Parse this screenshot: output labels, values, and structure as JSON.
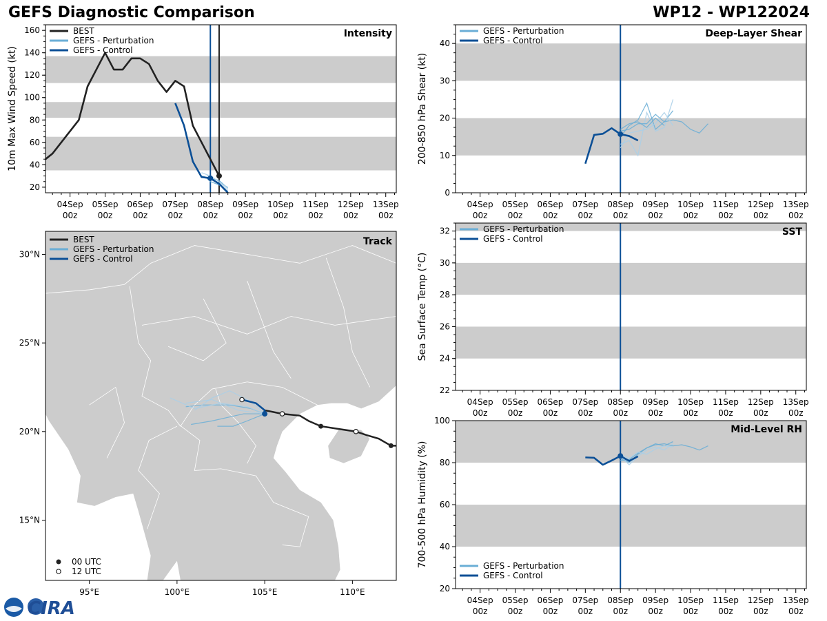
{
  "header": {
    "title_left": "GEFS Diagnostic Comparison",
    "title_right": "WP12 - WP122024"
  },
  "colors": {
    "best": "#222222",
    "perturbation": "#6aaed6",
    "perturbation_light": "#a9cfe8",
    "control": "#0b4f96",
    "band": "#cccccc",
    "land": "#cccccc",
    "border": "#ffffff"
  },
  "logo": {
    "text": "CIRA",
    "icon": "noaa-logo-icon"
  },
  "time_axis": {
    "ticks": [
      1,
      2,
      3,
      4,
      5,
      6,
      7,
      8,
      9
    ],
    "labels": [
      [
        "04Sep",
        "00z"
      ],
      [
        "05Sep",
        "00z"
      ],
      [
        "06Sep",
        "00z"
      ],
      [
        "07Sep",
        "00z"
      ],
      [
        "08Sep",
        "00z"
      ],
      [
        "09Sep",
        "00z"
      ],
      [
        "10Sep",
        "00z"
      ],
      [
        "11Sep",
        "00z"
      ],
      [
        "12Sep",
        "00z"
      ],
      [
        "13Sep",
        "00z"
      ]
    ],
    "tick_days": [
      1,
      2,
      3,
      4,
      5,
      6,
      7,
      8,
      9,
      10
    ],
    "range": [
      0.3,
      10.3
    ],
    "current_time": 5.0
  },
  "chart_data": [
    {
      "id": "intensity",
      "type": "line",
      "title": "Intensity",
      "ylabel": "10m Max Wind Speed (kt)",
      "ylim": [
        15,
        165
      ],
      "yticks": [
        20,
        40,
        60,
        80,
        100,
        120,
        140,
        160
      ],
      "bands": [
        [
          35,
          65
        ],
        [
          82,
          96
        ],
        [
          113,
          137
        ]
      ],
      "best_end_line": 5.25,
      "legend": [
        "BEST",
        "GEFS - Perturbation",
        "GEFS - Control"
      ],
      "series": [
        {
          "name": "BEST",
          "x": [
            0.3,
            0.5,
            0.75,
            1.0,
            1.25,
            1.5,
            1.75,
            2.0,
            2.25,
            2.5,
            2.75,
            3.0,
            3.25,
            3.5,
            3.75,
            4.0,
            4.25,
            4.5,
            4.75,
            5.0,
            5.25
          ],
          "y": [
            45,
            50,
            60,
            70,
            80,
            110,
            125,
            140,
            125,
            125,
            135,
            135,
            130,
            115,
            105,
            115,
            110,
            75,
            60,
            45,
            30
          ],
          "end_marker": true
        },
        {
          "name": "GEFS - Control",
          "x": [
            4.0,
            4.25,
            4.5,
            4.75,
            5.0,
            5.25,
            5.5
          ],
          "y": [
            95,
            75,
            43,
            29,
            28,
            23,
            15
          ],
          "marker_at": [
            5.0,
            28
          ]
        },
        {
          "name": "GEFS - Perturbation",
          "members": [
            {
              "x": [
                4.75,
                5.0,
                5.25,
                5.5
              ],
              "y": [
                30,
                28,
                26,
                19
              ]
            },
            {
              "x": [
                4.75,
                5.0,
                5.25,
                5.5
              ],
              "y": [
                33,
                30,
                25,
                17
              ]
            },
            {
              "x": [
                4.9,
                5.0,
                5.25,
                5.5
              ],
              "y": [
                28,
                25,
                22,
                16
              ]
            },
            {
              "x": [
                4.9,
                5.0,
                5.25,
                5.5
              ],
              "y": [
                31,
                27,
                24,
                20
              ]
            }
          ]
        }
      ]
    },
    {
      "id": "shear",
      "type": "line",
      "title": "Deep-Layer Shear",
      "ylabel": "200-850 hPa Shear (kt)",
      "ylim": [
        0,
        45
      ],
      "yticks": [
        0,
        10,
        20,
        30,
        40
      ],
      "bands": [
        [
          10,
          20
        ],
        [
          30,
          40
        ]
      ],
      "legend": [
        "GEFS - Perturbation",
        "GEFS - Control"
      ],
      "series": [
        {
          "name": "GEFS - Control",
          "x": [
            4.0,
            4.25,
            4.5,
            4.75,
            5.0,
            5.25,
            5.5
          ],
          "y": [
            7.8,
            15.5,
            15.8,
            17.3,
            15.7,
            15.2,
            14.0
          ],
          "marker_at": [
            5.0,
            15.7
          ]
        },
        {
          "name": "GEFS - Perturbation",
          "members": [
            {
              "x": [
                5.0,
                5.25,
                5.5,
                5.75,
                6.0,
                6.25,
                6.5
              ],
              "y": [
                15.0,
                18.0,
                19.5,
                24.0,
                17.0,
                19.0,
                22.0
              ]
            },
            {
              "x": [
                5.0,
                5.25,
                5.5,
                5.75,
                6.0,
                6.25,
                6.5
              ],
              "y": [
                13.0,
                14.0,
                10.0,
                21.5,
                16.5,
                17.5,
                25.0
              ]
            },
            {
              "x": [
                5.0,
                5.25,
                5.5,
                5.75,
                6.0,
                6.25,
                6.5,
                6.75,
                7.0,
                7.25,
                7.5
              ],
              "y": [
                16.5,
                17.0,
                18.5,
                18.5,
                21.0,
                19.0,
                19.5,
                19.0,
                17.0,
                16.0,
                18.5
              ]
            },
            {
              "x": [
                5.0,
                5.25,
                5.5,
                5.75,
                6.0,
                6.25,
                6.5
              ],
              "y": [
                12.0,
                16.0,
                16.5,
                17.0,
                18.5,
                21.5,
                18.0
              ]
            },
            {
              "x": [
                5.0,
                5.25,
                5.5,
                5.75,
                6.0,
                6.25
              ],
              "y": [
                17.0,
                18.5,
                19.0,
                17.5,
                20.0,
                18.0
              ]
            }
          ]
        }
      ]
    },
    {
      "id": "sst",
      "type": "line",
      "title": "SST",
      "ylabel": "Sea Surface Temp (°C)",
      "ylim": [
        22,
        32.5
      ],
      "yticks": [
        22,
        24,
        26,
        28,
        30,
        32
      ],
      "bands": [
        [
          24,
          26
        ],
        [
          28,
          30
        ],
        [
          32,
          32.5
        ]
      ],
      "legend": [
        "GEFS - Perturbation",
        "GEFS - Control"
      ],
      "series": []
    },
    {
      "id": "rh",
      "type": "line",
      "title": "Mid-Level RH",
      "ylabel": "700-500 hPa Humidity (%)",
      "ylim": [
        20,
        100
      ],
      "yticks": [
        20,
        40,
        60,
        80,
        100
      ],
      "bands": [
        [
          40,
          60
        ],
        [
          80,
          100
        ]
      ],
      "legend": [
        "GEFS - Perturbation",
        "GEFS - Control"
      ],
      "series": [
        {
          "name": "GEFS - Control",
          "x": [
            4.0,
            4.25,
            4.5,
            4.75,
            5.0,
            5.25,
            5.5
          ],
          "y": [
            82.5,
            82.3,
            79.0,
            81.0,
            83.2,
            80.8,
            83.0
          ],
          "marker_at": [
            5.0,
            83.2
          ]
        },
        {
          "name": "GEFS - Perturbation",
          "members": [
            {
              "x": [
                5.0,
                5.25,
                5.5,
                5.75,
                6.0,
                6.25,
                6.5
              ],
              "y": [
                82.0,
                80.0,
                84.0,
                87.0,
                89.0,
                88.0,
                90.0
              ]
            },
            {
              "x": [
                5.0,
                5.25,
                5.5,
                5.75,
                6.0,
                6.25,
                6.5
              ],
              "y": [
                83.0,
                79.0,
                83.0,
                86.0,
                87.5,
                86.0,
                89.0
              ]
            },
            {
              "x": [
                5.0,
                5.25,
                5.5,
                5.75,
                6.0,
                6.25,
                6.5,
                6.75,
                7.0,
                7.25,
                7.5
              ],
              "y": [
                81.0,
                81.5,
                84.5,
                87.0,
                88.5,
                89.0,
                88.0,
                88.5,
                87.5,
                86.0,
                88.0
              ]
            },
            {
              "x": [
                5.0,
                5.25,
                5.5,
                5.75,
                6.0,
                6.25,
                6.5
              ],
              "y": [
                84.0,
                82.0,
                85.0,
                84.0,
                86.5,
                88.0,
                87.5
              ]
            }
          ]
        }
      ]
    },
    {
      "id": "track",
      "type": "scatter",
      "title": "Track",
      "lon_range": [
        92.5,
        112.5
      ],
      "lat_range": [
        11.6,
        31.3
      ],
      "lon_ticks": [
        95,
        100,
        105,
        110
      ],
      "lon_labels": [
        "95°E",
        "100°E",
        "105°E",
        "110°E"
      ],
      "lat_ticks": [
        15,
        20,
        25,
        30
      ],
      "lat_labels": [
        "15°N",
        "20°N",
        "25°N",
        "30°N"
      ],
      "legend": [
        "BEST",
        "GEFS - Perturbation",
        "GEFS - Control"
      ],
      "marker_legend": [
        "00 UTC",
        "12 UTC"
      ],
      "best_track": {
        "lon": [
          112.5,
          112.2,
          111.5,
          110.8,
          110.2,
          109.2,
          108.2,
          107.5,
          107.0,
          106.0,
          105.5,
          105.0
        ],
        "lat": [
          19.2,
          19.2,
          19.6,
          19.8,
          20.0,
          20.15,
          20.3,
          20.6,
          20.9,
          21.0,
          21.1,
          21.2
        ],
        "markers_00z": [
          [
            112.2,
            19.2
          ],
          [
            108.2,
            20.3
          ]
        ],
        "markers_12z": [
          [
            110.2,
            20.0
          ],
          [
            106.0,
            21.0
          ]
        ]
      },
      "control_track": {
        "lon": [
          103.7,
          104.5,
          105.0,
          104.95
        ],
        "lat": [
          21.8,
          21.6,
          21.2,
          21.0
        ],
        "marker_00z": [
          105.0,
          21.0
        ],
        "marker_12z": [
          103.7,
          21.8
        ]
      },
      "perturbation_tracks": [
        {
          "lon": [
            105.0,
            104.2,
            103.0,
            101.5,
            100.5
          ],
          "lat": [
            21.0,
            21.3,
            21.5,
            21.5,
            21.4
          ]
        },
        {
          "lon": [
            105.0,
            104.0,
            102.5,
            101.0,
            99.6
          ],
          "lat": [
            21.0,
            21.4,
            21.6,
            21.3,
            21.9
          ]
        },
        {
          "lon": [
            105.0,
            103.8,
            102.0,
            100.8
          ],
          "lat": [
            21.0,
            21.0,
            20.6,
            20.4
          ]
        },
        {
          "lon": [
            105.0,
            104.2,
            103.0,
            102.0,
            101.0
          ],
          "lat": [
            21.0,
            21.7,
            22.3,
            21.9,
            21.2
          ]
        },
        {
          "lon": [
            105.0,
            104.0,
            103.2,
            102.3
          ],
          "lat": [
            21.0,
            20.6,
            20.3,
            20.3
          ]
        },
        {
          "lon": [
            105.0,
            103.5,
            102.0,
            100.5
          ],
          "lat": [
            21.0,
            21.2,
            21.8,
            21.6
          ]
        }
      ]
    }
  ]
}
